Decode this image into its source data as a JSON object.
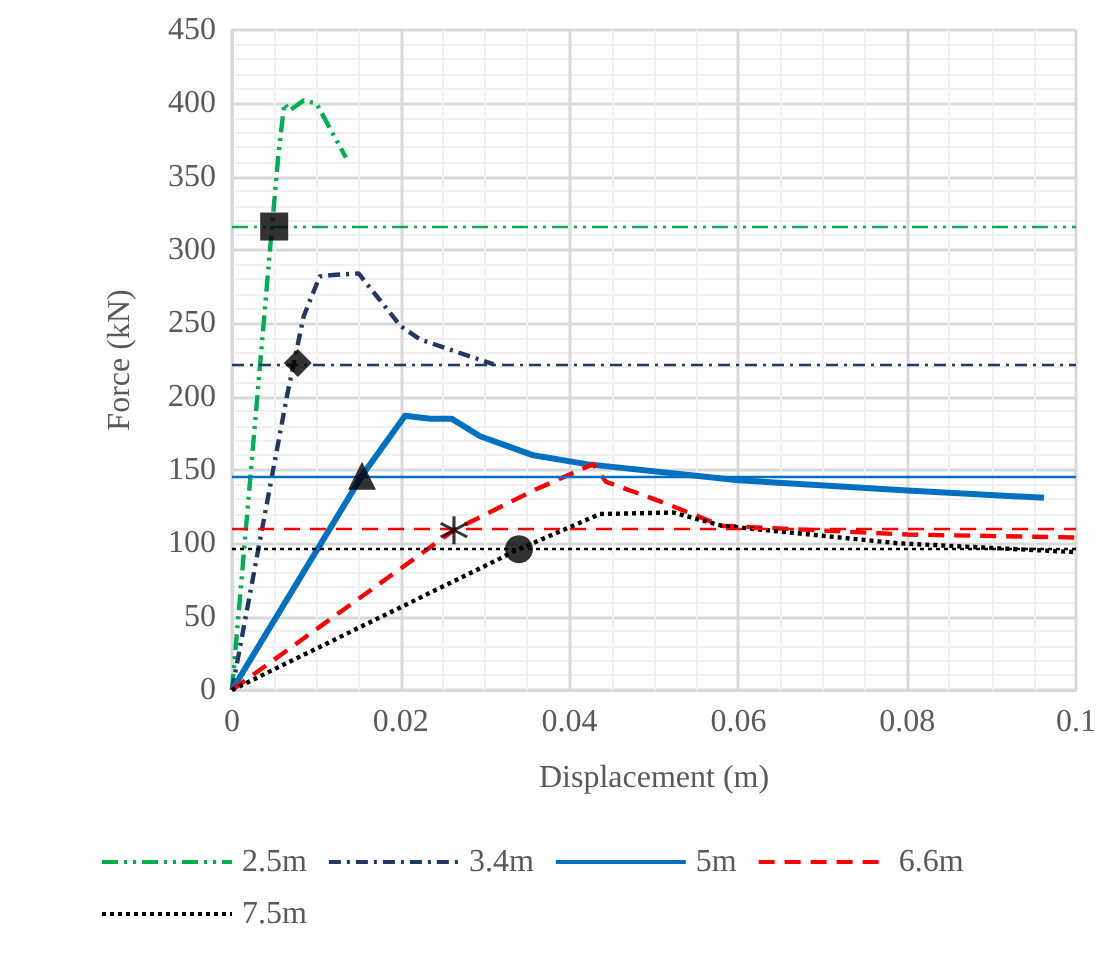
{
  "chart_data": {
    "type": "line",
    "xlabel": "Displacement (m)",
    "ylabel": "Force (kN)",
    "xlim": [
      0,
      0.1
    ],
    "xticks": [
      0,
      0.02,
      0.04,
      0.06,
      0.08,
      0.1
    ],
    "ylim": [
      0,
      450
    ],
    "yticks": [
      0,
      50,
      100,
      150,
      200,
      250,
      300,
      350,
      400,
      450
    ],
    "grid": true,
    "legend": "bottom",
    "marker": "none",
    "series": [
      {
        "name": "2.5m",
        "color": "#00b050",
        "line_style": "dashdotdot",
        "x": [
          0,
          0.0045,
          0.0055,
          0.0062,
          0.0068,
          0.0085,
          0.01,
          0.0135
        ],
        "values": [
          0,
          300,
          365,
          400,
          395,
          402,
          400,
          363
        ]
      },
      {
        "name": "3.4m",
        "color": "#1f3864",
        "line_style": "dashdot",
        "x": [
          0,
          0.0065,
          0.0085,
          0.0104,
          0.012,
          0.015,
          0.02,
          0.0223,
          0.031
        ],
        "values": [
          0,
          200,
          255,
          282,
          283,
          284,
          248,
          239,
          222
        ]
      },
      {
        "name": "5m",
        "color": "#0070c0",
        "line_style": "solid",
        "x": [
          0,
          0.0154,
          0.0205,
          0.0235,
          0.026,
          0.0294,
          0.0357,
          0.042,
          0.06,
          0.08,
          0.0962
        ],
        "values": [
          0,
          146,
          187,
          185,
          185,
          173,
          160,
          154,
          143,
          136,
          131
        ]
      },
      {
        "name": "6.6m",
        "color": "#ff0000",
        "line_style": "dashed",
        "x": [
          0,
          0.0263,
          0.0357,
          0.0428,
          0.0443,
          0.0515,
          0.058,
          0.08,
          0.1
        ],
        "values": [
          0,
          109,
          136,
          154,
          142,
          127,
          112,
          106,
          104
        ]
      },
      {
        "name": "7.5m",
        "color": "#000000",
        "line_style": "dotted",
        "x": [
          0,
          0.034,
          0.0436,
          0.0523,
          0.058,
          0.079,
          0.1
        ],
        "values": [
          0,
          96,
          120,
          121,
          112,
          100,
          94
        ]
      },
      {
        "type": "scatter",
        "color": "#000000",
        "marker": "square",
        "x": [
          0.005
        ],
        "values": [
          316
        ]
      },
      {
        "type": "scatter",
        "color": "#000000",
        "marker": "diamond",
        "x": [
          0.0078
        ],
        "values": [
          223
        ]
      },
      {
        "type": "scatter",
        "color": "#000000",
        "marker": "triangle",
        "x": [
          0.0154
        ],
        "values": [
          146
        ]
      },
      {
        "type": "scatter",
        "color": "#000000",
        "marker": "cross",
        "x": [
          0.0263
        ],
        "values": [
          109
        ]
      },
      {
        "type": "scatter",
        "color": "#000000",
        "marker": "circle",
        "x": [
          0.034
        ],
        "values": [
          96
        ]
      }
    ],
    "ref_lines": [
      {
        "axis": "y",
        "value": 316,
        "color": "#00b050",
        "line_style": "dashdotdot"
      },
      {
        "axis": "y",
        "value": 222,
        "color": "#1f3864",
        "line_style": "dashdot"
      },
      {
        "axis": "y",
        "value": 146,
        "color": "#0070c0",
        "line_style": "solid"
      },
      {
        "axis": "y",
        "value": 110,
        "color": "#ff0000",
        "line_style": "dashed"
      },
      {
        "axis": "y",
        "value": 97,
        "color": "#000000",
        "line_style": "dotted"
      }
    ]
  }
}
